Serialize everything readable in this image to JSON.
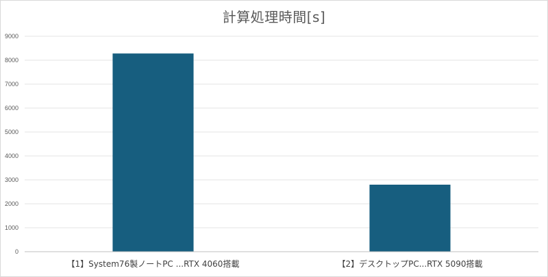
{
  "chart_data": {
    "type": "bar",
    "title": "計算処理時間[s]",
    "categories": [
      "【1】System76製ノートPC ...RTX 4060搭載",
      "【2】デスクトップPC...RTX 5090搭載"
    ],
    "values": [
      8280,
      2800
    ],
    "ylim": [
      0,
      9000
    ],
    "yticks": [
      0,
      1000,
      2000,
      3000,
      4000,
      5000,
      6000,
      7000,
      8000,
      9000
    ],
    "grid": true,
    "legend": "none",
    "bar_color": "#175e7f",
    "grid_color": "#e3e3e3",
    "axis_color": "#bfbfbf"
  }
}
